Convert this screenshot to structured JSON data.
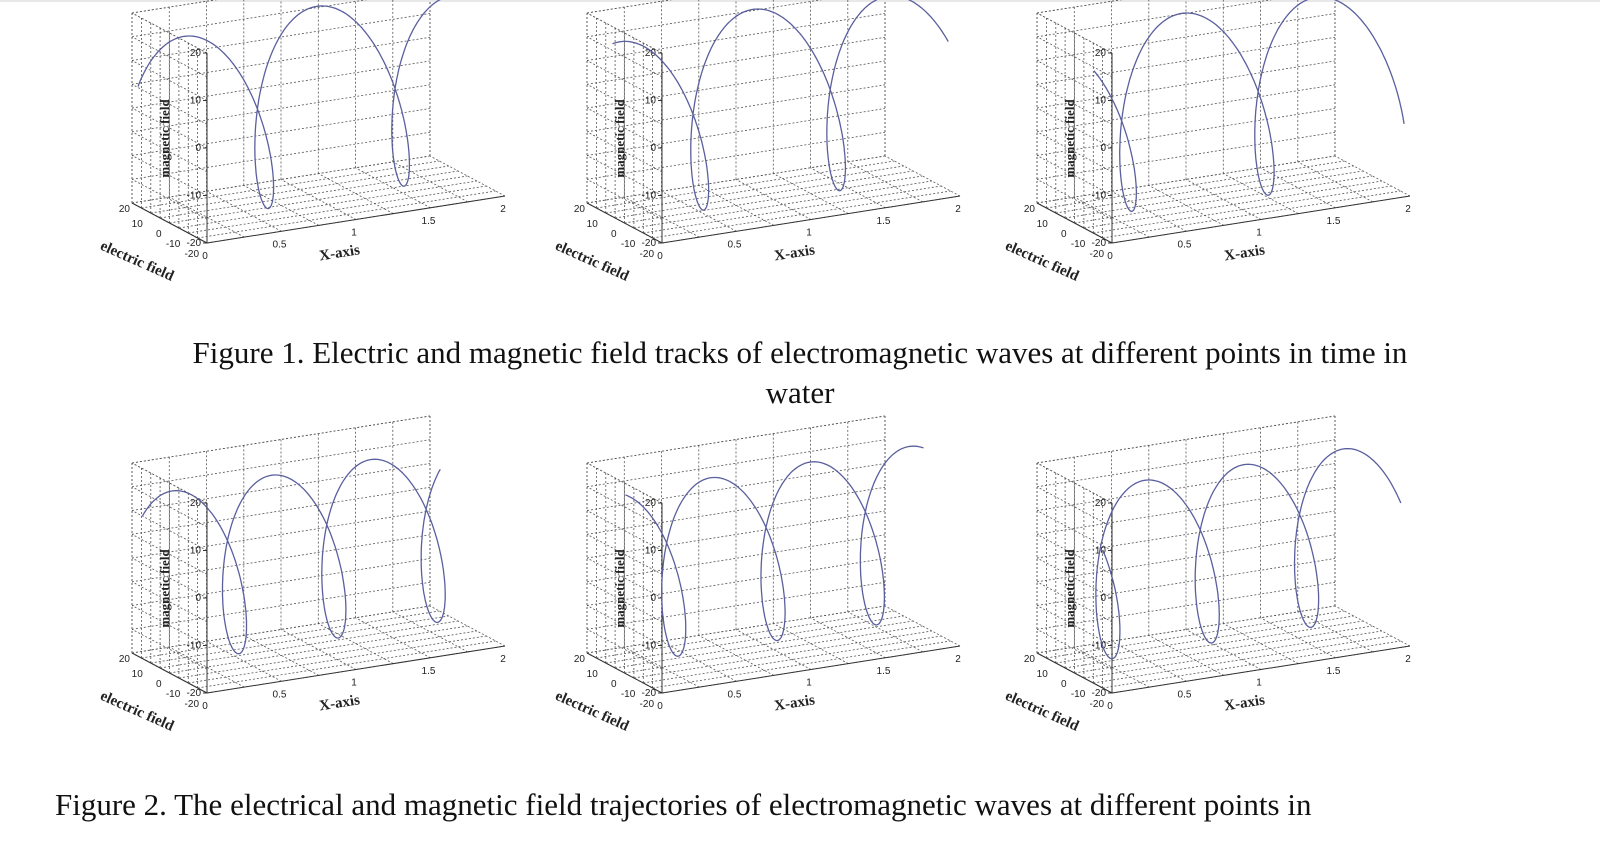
{
  "figure1": {
    "caption_line1": "Figure 1. Electric and magnetic field tracks of electromagnetic waves at different points in time in",
    "caption_line2": "water",
    "panels": [
      {
        "id": "f1p1",
        "cycles": 2.2,
        "phase": 0.3,
        "decay": 1.0
      },
      {
        "id": "f1p2",
        "cycles": 2.2,
        "phase": 1.2,
        "decay": 1.0
      },
      {
        "id": "f1p3",
        "cycles": 2.2,
        "phase": 2.2,
        "decay": 1.0
      }
    ]
  },
  "figure2": {
    "caption_line1": "Figure 2. The electrical and magnetic field trajectories of electromagnetic waves at different points in",
    "panels": [
      {
        "id": "f2p1",
        "cycles": 3.0,
        "phase": 0.6,
        "decay": 0.0
      },
      {
        "id": "f2p2",
        "cycles": 3.0,
        "phase": 1.6,
        "decay": 0.0
      },
      {
        "id": "f2p3",
        "cycles": 3.0,
        "phase": 2.6,
        "decay": 0.0
      }
    ]
  },
  "axes": {
    "xlabel": "X-axis",
    "ylabel": "electric field",
    "zlabel": "magnetic field",
    "x_ticks": [
      "0",
      "0.5",
      "1",
      "1.5",
      "2"
    ],
    "y_ticks": [
      "-20",
      "-10",
      "0",
      "10",
      "20"
    ],
    "z_ticks": [
      "-20",
      "-10",
      "0",
      "10",
      "20"
    ],
    "xlim": [
      0,
      2
    ],
    "ylim": [
      -20,
      20
    ],
    "zlim": [
      -20,
      20
    ],
    "line_color": "#5a5f9e",
    "grid": "dotted"
  },
  "chart_data": [
    {
      "type": "line",
      "subtype": "3d-helix",
      "xlabel": "X-axis",
      "ylabel": "electric field",
      "zlabel": "magnetic field",
      "xlim": [
        0,
        2
      ],
      "ylim": [
        -20,
        20
      ],
      "zlim": [
        -20,
        20
      ]
    },
    {
      "type": "line",
      "subtype": "3d-helix",
      "xlabel": "X-axis",
      "ylabel": "electric field",
      "zlabel": "magnetic field",
      "xlim": [
        0,
        2
      ],
      "ylim": [
        -20,
        20
      ],
      "zlim": [
        -20,
        20
      ]
    },
    {
      "type": "line",
      "subtype": "3d-helix",
      "xlabel": "X-axis",
      "ylabel": "electric field",
      "zlabel": "magnetic field",
      "xlim": [
        0,
        2
      ],
      "ylim": [
        -20,
        20
      ],
      "zlim": [
        -20,
        20
      ]
    },
    {
      "type": "line",
      "subtype": "3d-helix",
      "xlabel": "X-axis",
      "ylabel": "electric field",
      "zlabel": "magnetic field",
      "xlim": [
        0,
        2
      ],
      "ylim": [
        -20,
        20
      ],
      "zlim": [
        -20,
        20
      ]
    },
    {
      "type": "line",
      "subtype": "3d-helix",
      "xlabel": "X-axis",
      "ylabel": "electric field",
      "zlabel": "magnetic field",
      "xlim": [
        0,
        2
      ],
      "ylim": [
        -20,
        20
      ],
      "zlim": [
        -20,
        20
      ]
    },
    {
      "type": "line",
      "subtype": "3d-helix",
      "xlabel": "X-axis",
      "ylabel": "electric field",
      "zlabel": "magnetic field",
      "xlim": [
        0,
        2
      ],
      "ylim": [
        -20,
        20
      ],
      "zlim": [
        -20,
        20
      ]
    }
  ]
}
